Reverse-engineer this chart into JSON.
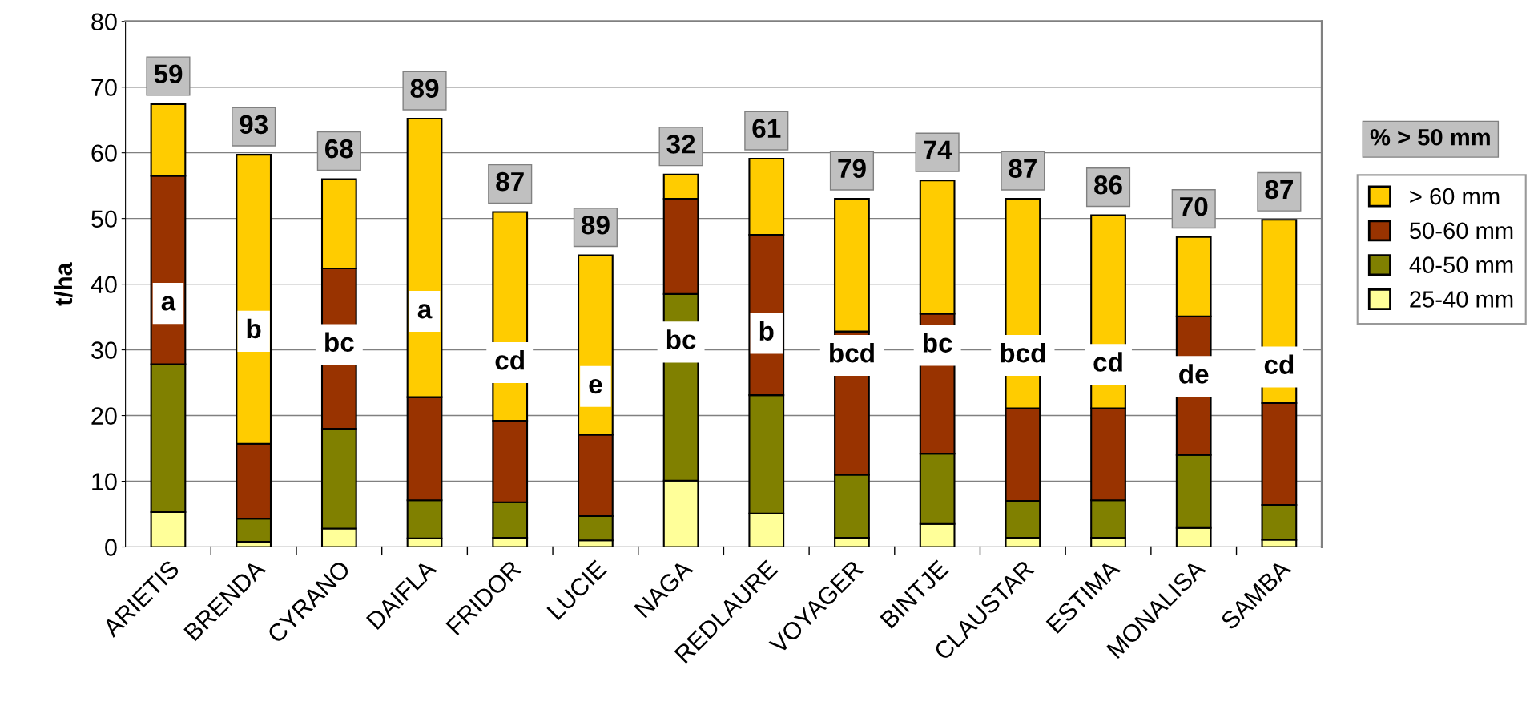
{
  "chart_data": {
    "type": "bar",
    "stacked": true,
    "ylabel": "t/ha",
    "legend_title": "% > 50 mm",
    "categories": [
      "ARIETIS",
      "BRENDA",
      "CYRANO",
      "DAIFLA",
      "FRIDOR",
      "LUCIE",
      "NAGA",
      "REDLAURE",
      "VOYAGER",
      "BINTJE",
      "CLAUSTAR",
      "ESTIMA",
      "MONALISA",
      "SAMBA"
    ],
    "series": [
      {
        "name": "25-40 mm",
        "color": "#ffff99",
        "values": [
          5.3,
          0.8,
          2.8,
          1.3,
          1.4,
          1.0,
          10.1,
          5.1,
          1.4,
          3.5,
          1.4,
          1.4,
          2.9,
          1.1
        ]
      },
      {
        "name": "40-50 mm",
        "color": "#808000",
        "values": [
          22.5,
          3.5,
          15.2,
          5.8,
          5.4,
          3.7,
          28.4,
          18.0,
          9.6,
          10.7,
          5.6,
          5.7,
          11.1,
          5.3
        ]
      },
      {
        "name": "50-60 mm",
        "color": "#993300",
        "values": [
          28.7,
          11.4,
          24.4,
          15.7,
          12.4,
          12.4,
          14.5,
          24.4,
          21.8,
          21.3,
          14.1,
          14.0,
          21.1,
          15.5
        ]
      },
      {
        "name": "> 60 mm",
        "color": "#ffcc00",
        "values": [
          10.9,
          44.0,
          13.6,
          42.4,
          31.8,
          27.3,
          3.7,
          11.6,
          20.2,
          20.3,
          31.9,
          29.4,
          12.1,
          27.9
        ]
      }
    ],
    "ylim": [
      0,
      80
    ],
    "yticks": [
      0,
      10,
      20,
      30,
      40,
      50,
      60,
      70,
      80
    ],
    "grid": "y",
    "legend": "right",
    "annotations": [
      "59",
      "93",
      "68",
      "89",
      "87",
      "89",
      "32",
      "61",
      "79",
      "74",
      "87",
      "86",
      "70",
      "87",
      "a",
      "b",
      "bc",
      "a",
      "cd",
      "e",
      "bc",
      "b",
      "bcd",
      "bc",
      "bcd",
      "cd",
      "de",
      "cd"
    ]
  }
}
